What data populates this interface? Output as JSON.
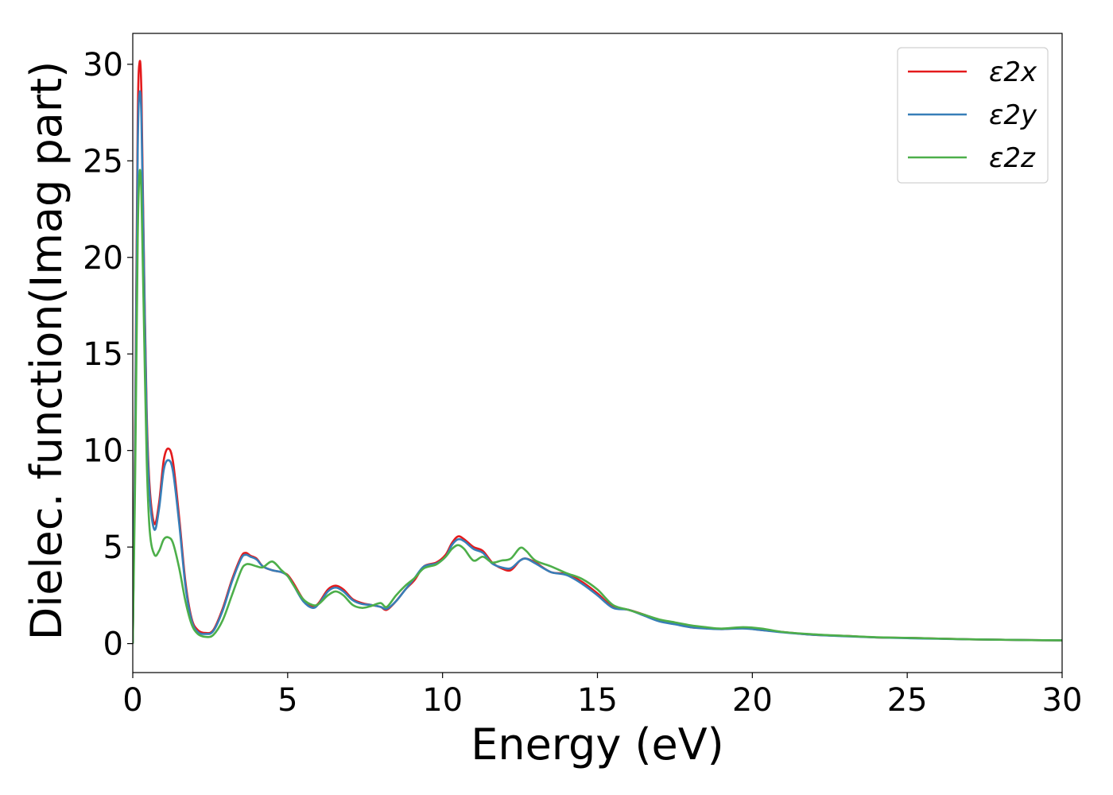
{
  "chart_data": {
    "type": "line",
    "xlabel": "Energy (eV)",
    "ylabel": "Dielec. function(Imag part)",
    "xlim": [
      0,
      30
    ],
    "ylim": [
      -1.5,
      31.6
    ],
    "xticks": [
      "0",
      "5",
      "10",
      "15",
      "20",
      "25",
      "30"
    ],
    "yticks": [
      "0",
      "5",
      "10",
      "15",
      "20",
      "25",
      "30"
    ],
    "grid": false,
    "legend_position": "top-right",
    "series": [
      {
        "name": "ε2x",
        "color": "#e41a1c",
        "points": [
          [
            0,
            0
          ],
          [
            0.08,
            12
          ],
          [
            0.16,
            27
          ],
          [
            0.22,
            30.1
          ],
          [
            0.28,
            28.5
          ],
          [
            0.35,
            21
          ],
          [
            0.45,
            12
          ],
          [
            0.55,
            8
          ],
          [
            0.7,
            6.2
          ],
          [
            0.85,
            7.3
          ],
          [
            1.0,
            9.5
          ],
          [
            1.15,
            10.1
          ],
          [
            1.3,
            9.4
          ],
          [
            1.5,
            6.5
          ],
          [
            1.7,
            3.2
          ],
          [
            1.9,
            1.3
          ],
          [
            2.1,
            0.7
          ],
          [
            2.35,
            0.55
          ],
          [
            2.6,
            0.7
          ],
          [
            2.9,
            1.8
          ],
          [
            3.2,
            3.3
          ],
          [
            3.5,
            4.5
          ],
          [
            3.65,
            4.7
          ],
          [
            3.8,
            4.55
          ],
          [
            4.0,
            4.4
          ],
          [
            4.2,
            4.0
          ],
          [
            4.5,
            3.8
          ],
          [
            4.8,
            3.7
          ],
          [
            5.0,
            3.55
          ],
          [
            5.2,
            3.1
          ],
          [
            5.5,
            2.3
          ],
          [
            5.8,
            1.9
          ],
          [
            6.0,
            2.1
          ],
          [
            6.3,
            2.8
          ],
          [
            6.55,
            3.0
          ],
          [
            6.8,
            2.8
          ],
          [
            7.1,
            2.3
          ],
          [
            7.4,
            2.1
          ],
          [
            7.7,
            2.0
          ],
          [
            8.0,
            1.9
          ],
          [
            8.2,
            1.75
          ],
          [
            8.5,
            2.2
          ],
          [
            8.8,
            2.8
          ],
          [
            9.1,
            3.3
          ],
          [
            9.4,
            4.0
          ],
          [
            9.8,
            4.2
          ],
          [
            10.1,
            4.6
          ],
          [
            10.3,
            5.2
          ],
          [
            10.5,
            5.55
          ],
          [
            10.7,
            5.4
          ],
          [
            11.0,
            5.0
          ],
          [
            11.3,
            4.8
          ],
          [
            11.6,
            4.2
          ],
          [
            11.9,
            3.9
          ],
          [
            12.2,
            3.8
          ],
          [
            12.5,
            4.3
          ],
          [
            12.7,
            4.4
          ],
          [
            13.0,
            4.2
          ],
          [
            13.5,
            3.7
          ],
          [
            14.0,
            3.6
          ],
          [
            14.5,
            3.2
          ],
          [
            15.0,
            2.6
          ],
          [
            15.5,
            1.9
          ],
          [
            16.0,
            1.75
          ],
          [
            16.5,
            1.5
          ],
          [
            17.0,
            1.2
          ],
          [
            17.5,
            1.05
          ],
          [
            18.0,
            0.85
          ],
          [
            18.5,
            0.8
          ],
          [
            19.0,
            0.75
          ],
          [
            19.7,
            0.8
          ],
          [
            20.3,
            0.7
          ],
          [
            21.0,
            0.6
          ],
          [
            22.0,
            0.45
          ],
          [
            23.0,
            0.4
          ],
          [
            24.0,
            0.32
          ],
          [
            25.0,
            0.3
          ],
          [
            26.0,
            0.26
          ],
          [
            27.0,
            0.22
          ],
          [
            28.0,
            0.2
          ],
          [
            29.0,
            0.18
          ],
          [
            30.0,
            0.17
          ]
        ]
      },
      {
        "name": "ε2y",
        "color": "#377eb8",
        "points": [
          [
            0,
            0
          ],
          [
            0.08,
            11
          ],
          [
            0.16,
            25.5
          ],
          [
            0.22,
            28.5
          ],
          [
            0.28,
            27.2
          ],
          [
            0.35,
            20.5
          ],
          [
            0.45,
            11.5
          ],
          [
            0.55,
            7.6
          ],
          [
            0.7,
            5.9
          ],
          [
            0.85,
            7.0
          ],
          [
            1.0,
            9.0
          ],
          [
            1.15,
            9.5
          ],
          [
            1.3,
            8.9
          ],
          [
            1.5,
            6.2
          ],
          [
            1.7,
            3.0
          ],
          [
            1.9,
            1.2
          ],
          [
            2.1,
            0.6
          ],
          [
            2.35,
            0.5
          ],
          [
            2.6,
            0.65
          ],
          [
            2.9,
            1.7
          ],
          [
            3.2,
            3.2
          ],
          [
            3.5,
            4.4
          ],
          [
            3.65,
            4.6
          ],
          [
            3.8,
            4.5
          ],
          [
            4.0,
            4.35
          ],
          [
            4.2,
            4.0
          ],
          [
            4.5,
            3.8
          ],
          [
            4.8,
            3.7
          ],
          [
            5.0,
            3.5
          ],
          [
            5.2,
            3.0
          ],
          [
            5.5,
            2.2
          ],
          [
            5.8,
            1.85
          ],
          [
            6.0,
            2.05
          ],
          [
            6.3,
            2.7
          ],
          [
            6.55,
            2.9
          ],
          [
            6.8,
            2.7
          ],
          [
            7.1,
            2.25
          ],
          [
            7.4,
            2.05
          ],
          [
            7.7,
            2.0
          ],
          [
            8.0,
            1.9
          ],
          [
            8.2,
            1.8
          ],
          [
            8.5,
            2.2
          ],
          [
            8.8,
            2.8
          ],
          [
            9.1,
            3.4
          ],
          [
            9.4,
            4.0
          ],
          [
            9.8,
            4.15
          ],
          [
            10.1,
            4.5
          ],
          [
            10.3,
            5.1
          ],
          [
            10.5,
            5.4
          ],
          [
            10.7,
            5.3
          ],
          [
            11.0,
            4.9
          ],
          [
            11.3,
            4.7
          ],
          [
            11.6,
            4.15
          ],
          [
            11.9,
            3.95
          ],
          [
            12.2,
            3.9
          ],
          [
            12.5,
            4.3
          ],
          [
            12.7,
            4.4
          ],
          [
            13.0,
            4.15
          ],
          [
            13.5,
            3.7
          ],
          [
            14.0,
            3.55
          ],
          [
            14.5,
            3.1
          ],
          [
            15.0,
            2.5
          ],
          [
            15.5,
            1.85
          ],
          [
            16.0,
            1.75
          ],
          [
            16.5,
            1.45
          ],
          [
            17.0,
            1.15
          ],
          [
            17.5,
            1.0
          ],
          [
            18.0,
            0.85
          ],
          [
            18.5,
            0.78
          ],
          [
            19.0,
            0.75
          ],
          [
            19.7,
            0.78
          ],
          [
            20.3,
            0.7
          ],
          [
            21.0,
            0.58
          ],
          [
            22.0,
            0.45
          ],
          [
            23.0,
            0.38
          ],
          [
            24.0,
            0.32
          ],
          [
            25.0,
            0.28
          ],
          [
            26.0,
            0.25
          ],
          [
            27.0,
            0.22
          ],
          [
            28.0,
            0.2
          ],
          [
            29.0,
            0.18
          ],
          [
            30.0,
            0.17
          ]
        ]
      },
      {
        "name": "ε2z",
        "color": "#4daf4a",
        "points": [
          [
            0,
            0
          ],
          [
            0.08,
            9
          ],
          [
            0.16,
            21
          ],
          [
            0.22,
            24.4
          ],
          [
            0.28,
            23.2
          ],
          [
            0.35,
            17.5
          ],
          [
            0.45,
            9.5
          ],
          [
            0.55,
            5.8
          ],
          [
            0.7,
            4.6
          ],
          [
            0.85,
            4.8
          ],
          [
            1.0,
            5.4
          ],
          [
            1.15,
            5.5
          ],
          [
            1.3,
            5.2
          ],
          [
            1.5,
            3.9
          ],
          [
            1.7,
            2.2
          ],
          [
            1.9,
            1.0
          ],
          [
            2.1,
            0.5
          ],
          [
            2.35,
            0.35
          ],
          [
            2.6,
            0.45
          ],
          [
            2.9,
            1.2
          ],
          [
            3.2,
            2.5
          ],
          [
            3.5,
            3.8
          ],
          [
            3.65,
            4.1
          ],
          [
            3.8,
            4.1
          ],
          [
            4.0,
            4.0
          ],
          [
            4.2,
            3.95
          ],
          [
            4.5,
            4.25
          ],
          [
            4.8,
            3.8
          ],
          [
            5.0,
            3.5
          ],
          [
            5.2,
            3.0
          ],
          [
            5.5,
            2.3
          ],
          [
            5.8,
            2.0
          ],
          [
            6.0,
            2.05
          ],
          [
            6.3,
            2.5
          ],
          [
            6.55,
            2.7
          ],
          [
            6.8,
            2.5
          ],
          [
            7.1,
            2.0
          ],
          [
            7.4,
            1.85
          ],
          [
            7.7,
            1.95
          ],
          [
            8.0,
            2.1
          ],
          [
            8.2,
            1.9
          ],
          [
            8.5,
            2.5
          ],
          [
            8.8,
            3.0
          ],
          [
            9.1,
            3.4
          ],
          [
            9.4,
            3.9
          ],
          [
            9.8,
            4.1
          ],
          [
            10.1,
            4.5
          ],
          [
            10.3,
            4.9
          ],
          [
            10.5,
            5.1
          ],
          [
            10.7,
            4.9
          ],
          [
            11.0,
            4.3
          ],
          [
            11.3,
            4.5
          ],
          [
            11.6,
            4.2
          ],
          [
            11.9,
            4.3
          ],
          [
            12.2,
            4.4
          ],
          [
            12.5,
            4.95
          ],
          [
            12.7,
            4.8
          ],
          [
            13.0,
            4.3
          ],
          [
            13.5,
            4.0
          ],
          [
            14.0,
            3.65
          ],
          [
            14.5,
            3.35
          ],
          [
            15.0,
            2.8
          ],
          [
            15.5,
            2.0
          ],
          [
            16.0,
            1.75
          ],
          [
            16.5,
            1.5
          ],
          [
            17.0,
            1.25
          ],
          [
            17.5,
            1.1
          ],
          [
            18.0,
            0.95
          ],
          [
            18.5,
            0.85
          ],
          [
            19.0,
            0.78
          ],
          [
            19.7,
            0.85
          ],
          [
            20.3,
            0.78
          ],
          [
            21.0,
            0.6
          ],
          [
            22.0,
            0.48
          ],
          [
            23.0,
            0.4
          ],
          [
            24.0,
            0.33
          ],
          [
            25.0,
            0.3
          ],
          [
            26.0,
            0.26
          ],
          [
            27.0,
            0.22
          ],
          [
            28.0,
            0.2
          ],
          [
            29.0,
            0.18
          ],
          [
            30.0,
            0.17
          ]
        ]
      }
    ]
  }
}
